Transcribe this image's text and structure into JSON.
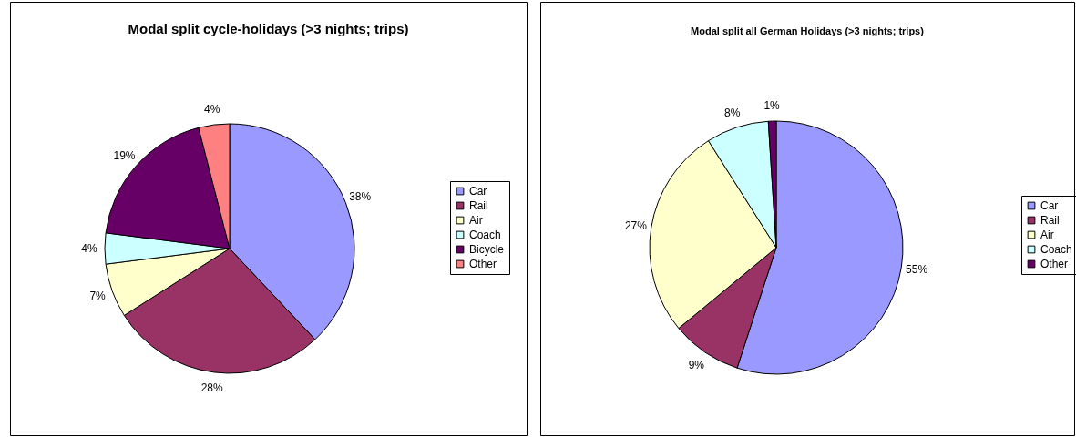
{
  "chart_data": [
    {
      "type": "pie",
      "title": "Modal split cycle-holidays (>3 nights; trips)",
      "categories": [
        "Car",
        "Rail",
        "Air",
        "Coach",
        "Bicycle",
        "Other"
      ],
      "values": [
        38,
        28,
        7,
        4,
        19,
        4
      ],
      "colors": [
        "#9999ff",
        "#993366",
        "#ffffcc",
        "#ccffff",
        "#660066",
        "#ff8080"
      ],
      "value_labels": [
        "38%",
        "28%",
        "7%",
        "4%",
        "19%",
        "4%"
      ],
      "legend": "right"
    },
    {
      "type": "pie",
      "title": "Modal split all German Holidays (>3 nights; trips)",
      "categories": [
        "Car",
        "Rail",
        "Air",
        "Coach",
        "Other"
      ],
      "values": [
        55,
        9,
        27,
        8,
        1
      ],
      "colors": [
        "#9999ff",
        "#993366",
        "#ffffcc",
        "#ccffff",
        "#660066"
      ],
      "value_labels": [
        "55%",
        "9%",
        "27%",
        "8%",
        "1%"
      ],
      "legend": "right"
    }
  ]
}
